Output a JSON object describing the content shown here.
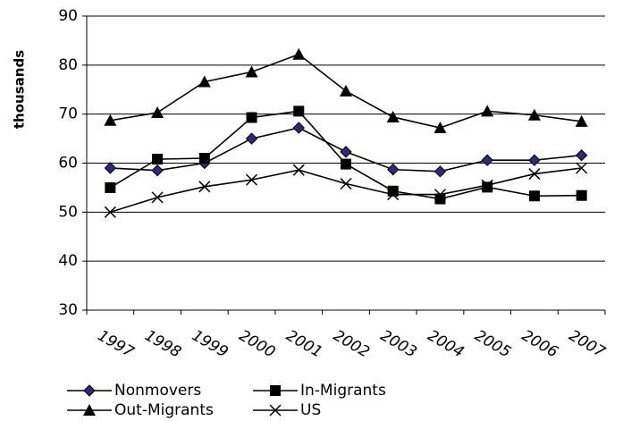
{
  "chart_data": {
    "type": "line",
    "y_label": "thousands",
    "categories": [
      "1997",
      "1998",
      "1999",
      "2000",
      "2001",
      "2002",
      "2003",
      "2004",
      "2005",
      "2006",
      "2007"
    ],
    "series": [
      {
        "name": "Nonmovers",
        "color": "#000000",
        "marker_color": "#2b2b7a",
        "marker": "diamond",
        "values": [
          59,
          58.5,
          60,
          65,
          67.2,
          62.3,
          58.7,
          58.3,
          60.6,
          60.6,
          61.6
        ]
      },
      {
        "name": "In-Migrants",
        "color": "#000000",
        "marker_color": "#000000",
        "marker": "square",
        "values": [
          55,
          60.8,
          61,
          69.3,
          70.6,
          59.8,
          54.3,
          52.7,
          55.1,
          53.3,
          53.4
        ]
      },
      {
        "name": "Out-Migrants",
        "color": "#000000",
        "marker_color": "#000000",
        "marker": "triangle",
        "values": [
          68.7,
          70.3,
          76.6,
          78.6,
          82.2,
          74.7,
          69.4,
          67.2,
          70.6,
          69.8,
          68.5
        ]
      },
      {
        "name": "US",
        "color": "#000000",
        "marker_color": "#000000",
        "marker": "x",
        "values": [
          50,
          53,
          55.2,
          56.6,
          58.6,
          55.8,
          53.6,
          53.6,
          55.5,
          57.8,
          59
        ]
      }
    ],
    "ylim": [
      30,
      90
    ],
    "yticks": [
      30,
      40,
      50,
      60,
      70,
      80,
      90
    ],
    "grid": true
  }
}
